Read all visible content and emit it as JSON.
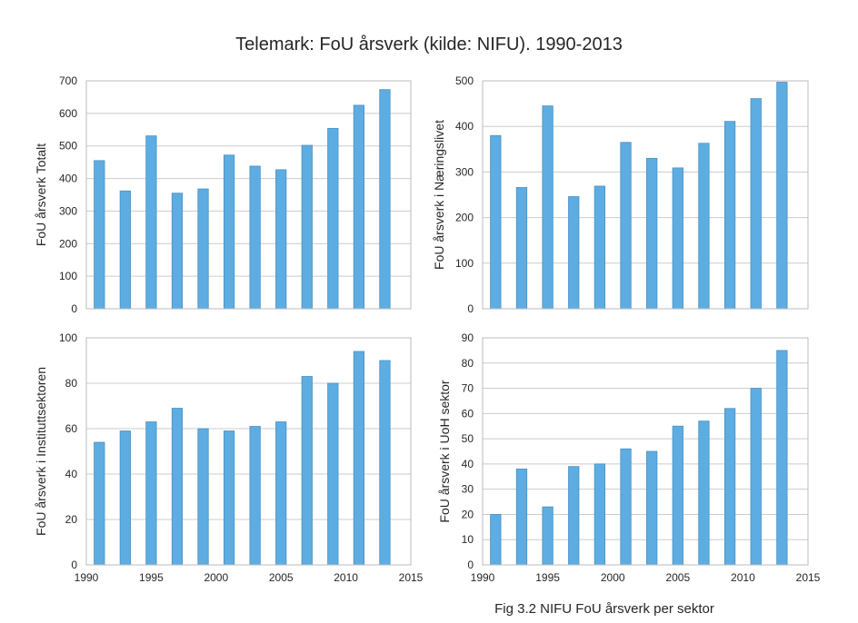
{
  "title": "Telemark: FoU årsverk (kilde: NIFU). 1990-2013",
  "caption": "Fig 3.2 NIFU FoU årsverk per sektor",
  "colors": {
    "bar": "#5dade2",
    "bar_edge": "#4a90c2",
    "grid": "#cccccc",
    "frame": "#bbbbbb"
  },
  "chart_data": [
    {
      "type": "bar",
      "ylabel": "FoU årsverk Totalt",
      "ylim": [
        0,
        700
      ],
      "yticks": [
        0,
        100,
        200,
        300,
        400,
        500,
        600,
        700
      ],
      "xlim": [
        1990,
        2015
      ],
      "xticks": [],
      "grid": true,
      "x": [
        1991,
        1993,
        1995,
        1997,
        1999,
        2001,
        2003,
        2005,
        2007,
        2009,
        2011,
        2013
      ],
      "values": [
        455,
        362,
        531,
        355,
        368,
        472,
        438,
        427,
        502,
        554,
        625,
        673
      ]
    },
    {
      "type": "bar",
      "ylabel": "FoU årsverk i Næringslivet",
      "ylim": [
        0,
        500
      ],
      "yticks": [
        0,
        100,
        200,
        300,
        400,
        500
      ],
      "xlim": [
        1990,
        2015
      ],
      "xticks": [],
      "grid": true,
      "x": [
        1991,
        1993,
        1995,
        1997,
        1999,
        2001,
        2003,
        2005,
        2007,
        2009,
        2011,
        2013
      ],
      "values": [
        380,
        266,
        445,
        246,
        269,
        365,
        330,
        309,
        363,
        411,
        461,
        497
      ]
    },
    {
      "type": "bar",
      "ylabel": "FoU årsverk i Instituttsektoren",
      "ylim": [
        0,
        100
      ],
      "yticks": [
        0,
        20,
        40,
        60,
        80,
        100
      ],
      "xlim": [
        1990,
        2015
      ],
      "xticks": [
        1990,
        1995,
        2000,
        2005,
        2010,
        2015
      ],
      "grid": true,
      "x": [
        1991,
        1993,
        1995,
        1997,
        1999,
        2001,
        2003,
        2005,
        2007,
        2009,
        2011,
        2013
      ],
      "values": [
        54,
        59,
        63,
        69,
        60,
        59,
        61,
        63,
        83,
        80,
        94,
        90
      ]
    },
    {
      "type": "bar",
      "ylabel": "FoU årsverk i UoH sektor",
      "ylim": [
        0,
        90
      ],
      "yticks": [
        0,
        10,
        20,
        30,
        40,
        50,
        60,
        70,
        80,
        90
      ],
      "xlim": [
        1990,
        2015
      ],
      "xticks": [
        1990,
        1995,
        2000,
        2005,
        2010,
        2015
      ],
      "grid": true,
      "x": [
        1991,
        1993,
        1995,
        1997,
        1999,
        2001,
        2003,
        2005,
        2007,
        2009,
        2011,
        2013
      ],
      "values": [
        20,
        38,
        23,
        39,
        40,
        46,
        45,
        55,
        57,
        62,
        70,
        85
      ]
    }
  ]
}
